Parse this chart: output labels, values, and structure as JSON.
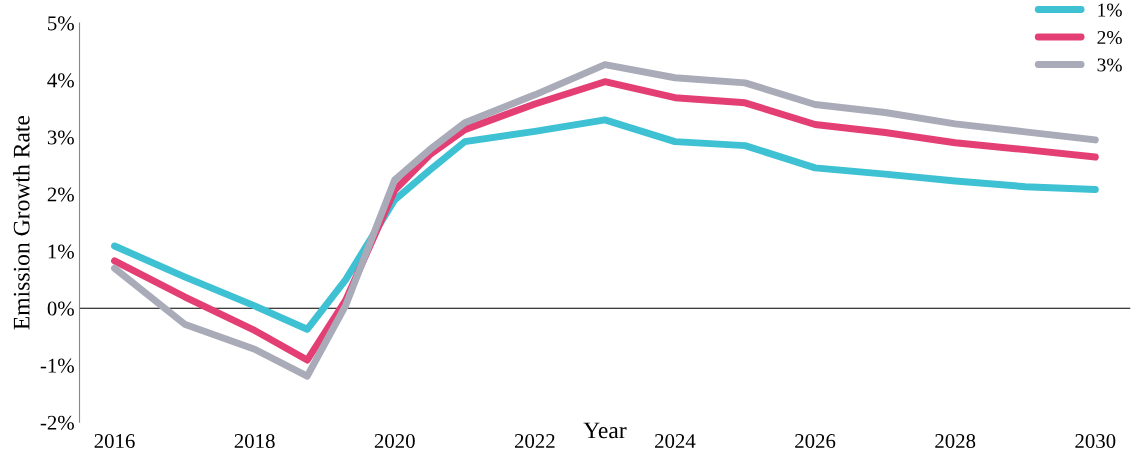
{
  "chart_data": {
    "type": "line",
    "xlabel": "Year",
    "ylabel": "Emission Growth Rate",
    "x": [
      2016,
      2017,
      2018,
      2018.75,
      2019.3,
      2020,
      2020.5,
      2021,
      2022,
      2023,
      2024,
      2025,
      2026,
      2027,
      2028,
      2029,
      2030
    ],
    "series": [
      {
        "name": "1%",
        "color": "#3ec1d3",
        "values": [
          1.09,
          0.55,
          0.04,
          -0.37,
          0.5,
          1.9,
          2.42,
          2.92,
          3.1,
          3.3,
          2.92,
          2.85,
          2.46,
          2.35,
          2.23,
          2.13,
          2.08
        ]
      },
      {
        "name": "2%",
        "color": "#e43f74",
        "values": [
          0.83,
          0.2,
          -0.39,
          -0.91,
          0.14,
          2.07,
          2.69,
          3.13,
          3.58,
          3.97,
          3.69,
          3.6,
          3.22,
          3.08,
          2.9,
          2.78,
          2.65
        ]
      },
      {
        "name": "3%",
        "color": "#a9abb8",
        "values": [
          0.7,
          -0.28,
          -0.72,
          -1.19,
          0.05,
          2.25,
          2.78,
          3.25,
          3.74,
          4.27,
          4.04,
          3.95,
          3.57,
          3.43,
          3.23,
          3.09,
          2.95
        ]
      }
    ],
    "xlim": [
      2015.5,
      2030.5
    ],
    "ylim": [
      -2,
      5
    ],
    "xticks": [
      2016,
      2018,
      2020,
      2022,
      2024,
      2026,
      2028,
      2030
    ],
    "yticks": [
      {
        "value": -2,
        "label": "-2%"
      },
      {
        "value": -1,
        "label": "-1%"
      },
      {
        "value": 0,
        "label": "0%"
      },
      {
        "value": 1,
        "label": "1%"
      },
      {
        "value": 2,
        "label": "2%"
      },
      {
        "value": 3,
        "label": "3%"
      },
      {
        "value": 4,
        "label": "4%"
      },
      {
        "value": 5,
        "label": "5%"
      }
    ],
    "ref_lines": [
      {
        "axis": "y",
        "value": 0,
        "color": "#000000"
      }
    ],
    "legend": "top right",
    "grid": false,
    "marker": "none",
    "line_style": "solid"
  }
}
